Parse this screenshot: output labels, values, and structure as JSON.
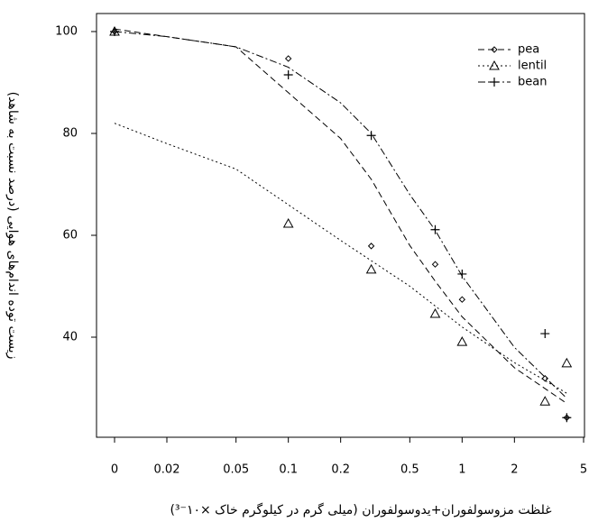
{
  "chart_data": {
    "type": "scatter",
    "x_label": "غلظت مزوسولفوران+یدوسولفوران (میلی گرم در کیلوگرم خاک ×۱۰⁻³)",
    "y_label": "زیست توده اندام‌های هوایی (درصد نسبت به شاهد)",
    "x_scale": "log",
    "xlim": [
      0.01,
      5
    ],
    "ylim": [
      20,
      100
    ],
    "xticks": [
      {
        "value": 0.01,
        "label": "0"
      },
      0.02,
      0.05,
      0.1,
      0.2,
      0.5,
      1,
      2,
      5
    ],
    "yticks": [
      40,
      60,
      80,
      100
    ],
    "legend": "top-right",
    "series": [
      {
        "name": "pea",
        "color": "#000000",
        "marker": "diamond",
        "dash": "7 4",
        "x": [
          0,
          0.1,
          0.3,
          0.7,
          1,
          3,
          4
        ],
        "values": [
          100,
          94.7,
          57.9,
          54.3,
          47.4,
          31.9,
          24.2
        ],
        "fit_x": [
          0,
          0.02,
          0.05,
          0.1,
          0.2,
          0.3,
          0.5,
          0.7,
          1,
          2,
          4
        ],
        "fit_values": [
          100.5,
          99,
          97,
          88,
          79,
          71,
          58,
          51,
          44,
          34,
          27
        ]
      },
      {
        "name": "lentil",
        "color": "#000000",
        "marker": "triangle",
        "dash": "2 3",
        "x": [
          0,
          0.1,
          0.3,
          0.7,
          1,
          3,
          4
        ],
        "values": [
          100,
          62.3,
          53.3,
          44.6,
          39.1,
          27.4,
          34.9
        ],
        "fit_x": [
          0,
          0.02,
          0.05,
          0.1,
          0.2,
          0.5,
          1,
          2,
          4
        ],
        "fit_values": [
          82,
          78,
          73,
          66,
          59,
          50,
          42,
          35,
          29
        ]
      },
      {
        "name": "bean",
        "color": "#000000",
        "marker": "plus",
        "dash": "8 3 2 3",
        "x": [
          0,
          0.1,
          0.3,
          0.7,
          1,
          3,
          4
        ],
        "values": [
          100,
          91.5,
          79.6,
          61.1,
          52.4,
          40.7,
          24.2
        ],
        "fit_x": [
          0,
          0.02,
          0.05,
          0.1,
          0.2,
          0.3,
          0.5,
          0.7,
          1,
          2,
          4
        ],
        "fit_values": [
          100,
          99,
          97,
          93,
          86,
          80,
          68,
          61,
          52,
          38,
          28
        ]
      }
    ]
  }
}
